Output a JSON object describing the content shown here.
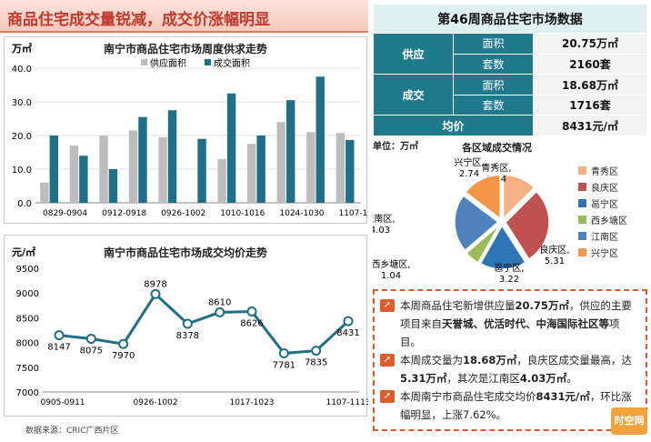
{
  "headline": "商品住宅成交量锐减，成交价涨幅明显",
  "table": {
    "title": "第46周商品住宅市场数据",
    "rows": [
      {
        "cat": "供应",
        "sub": "面积",
        "val": "20.75万㎡"
      },
      {
        "cat": "",
        "sub": "套数",
        "val": "2160套"
      },
      {
        "cat": "成交",
        "sub": "面积",
        "val": "18.68万㎡"
      },
      {
        "cat": "",
        "sub": "套数",
        "val": "1716套"
      }
    ],
    "avg_label": "均价",
    "avg_value": "8431元/㎡"
  },
  "chart_data": [
    {
      "type": "bar",
      "title": "南宁市商品住宅市场周度供求走势",
      "ylabel": "万㎡",
      "ylim": [
        0,
        40
      ],
      "yticks": [
        "0.0",
        "10.0",
        "20.0",
        "30.0",
        "40.0"
      ],
      "xticks": [
        "0829-0904",
        "0912-0918",
        "0926-1002",
        "1010-1016",
        "1024-1030",
        "1107-1113"
      ],
      "colors": {
        "supply": "#bdbdbd",
        "deal": "#1f6f87"
      },
      "series": [
        {
          "name": "供应面积",
          "values": [
            6,
            17,
            20,
            21.5,
            19.5,
            0,
            13,
            17.5,
            24,
            21,
            20.75
          ]
        },
        {
          "name": "成交面积",
          "values": [
            20,
            14,
            10,
            25.5,
            27.5,
            19,
            32.5,
            20,
            30.5,
            37.5,
            18.68
          ]
        }
      ]
    },
    {
      "type": "line",
      "title": "南宁市商品住宅市场成交均价走势",
      "ylabel": "元/㎡",
      "ylim": [
        7000,
        9500
      ],
      "yticks": [
        "7000",
        "7500",
        "8000",
        "8500",
        "9000",
        "9500"
      ],
      "xticks": [
        "0905-0911",
        "0926-1002",
        "1017-1023",
        "1107-1113"
      ],
      "color": "#1f6f87",
      "values": [
        8147,
        8075,
        7970,
        8978,
        8378,
        8610,
        8626,
        7781,
        7835,
        8431
      ],
      "labels": [
        "8147",
        "8075",
        "7970",
        "8978",
        "8378",
        "8610",
        "8626",
        "7781",
        "7835",
        "8431"
      ]
    },
    {
      "type": "pie",
      "title": "各区域成交情况",
      "unit": "单位：万㎡",
      "slices": [
        {
          "name": "青秀区",
          "value": 2.34,
          "label": "青秀区,\n2.34",
          "color": "#f4b183"
        },
        {
          "name": "良庆区",
          "value": 5.31,
          "label": "良庆区,\n5.31",
          "color": "#c0504d"
        },
        {
          "name": "邕宁区",
          "value": 3.22,
          "label": "邕宁区,\n3.22",
          "color": "#2e75b6"
        },
        {
          "name": "西乡塘区",
          "value": 1.04,
          "label": "西乡塘区,\n1.04",
          "color": "#9bbb59"
        },
        {
          "name": "江南区",
          "value": 4.03,
          "label": "江南区,\n4.03",
          "color": "#4f81bd"
        },
        {
          "name": "兴宁区",
          "value": 2.74,
          "label": "兴宁区,\n2.74",
          "color": "#f79646"
        }
      ]
    }
  ],
  "notes": {
    "n1_a": "本周商品住宅新增供应量",
    "n1_b": "20.75万㎡",
    "n1_c": "，供应的主要项目来自",
    "n1_d": "天誉城、优活时代、中海国际社区等",
    "n1_e": "项目。",
    "n2_a": "本周成交量为",
    "n2_b": "18.68万㎡",
    "n2_c": "，良庆区成交量最高，达",
    "n2_d": "5.31万㎡",
    "n2_e": "，其次是江南区",
    "n2_f": "4.03万㎡",
    "n2_g": "。",
    "n3_a": "本周南宁市商品住宅成交均价",
    "n3_b": "8431元/㎡",
    "n3_c": "，环比涨幅明显，上涨7.62%。"
  },
  "source": "数据来源：CRIC广西片区",
  "logo_text": "时空网"
}
